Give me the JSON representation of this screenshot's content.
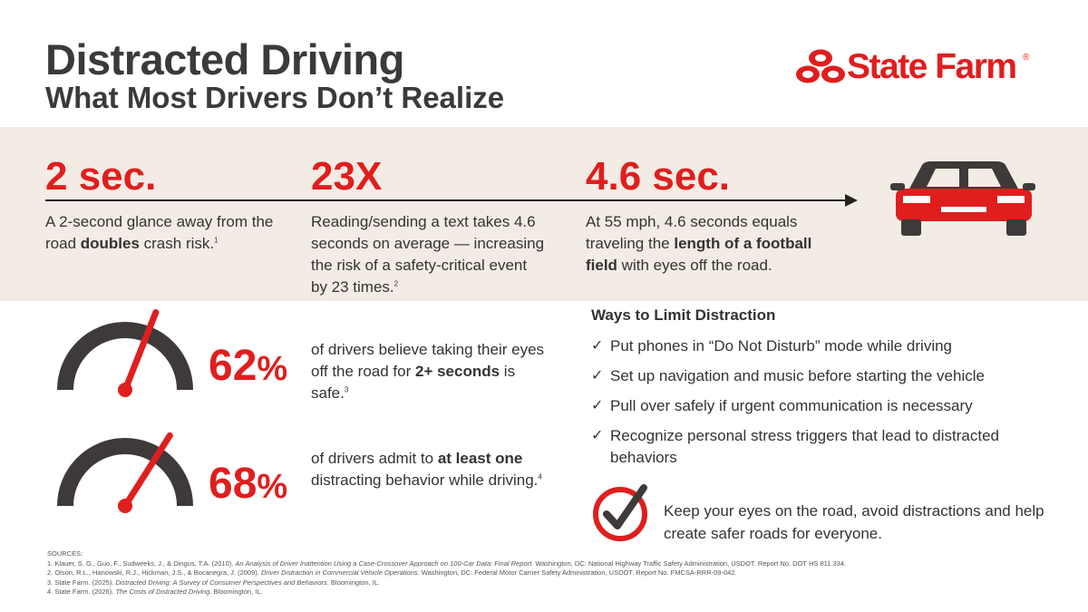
{
  "header": {
    "title": "Distracted Driving",
    "subtitle": "What Most Drivers Don’t Realize",
    "brand": "State Farm",
    "brand_mark": "®"
  },
  "stats": [
    {
      "big": "2 sec.",
      "pre": "A 2-second glance away from the road ",
      "bold": "doubles",
      "post": " crash risk.",
      "ref": "1"
    },
    {
      "big": "23X",
      "pre": "Reading/sending a text takes 4.6 seconds on average — increasing the risk of a safety-critical event by 23 times.",
      "ref": "2"
    },
    {
      "big": "4.6 sec.",
      "pre": "At 55 mph, 4.6 seconds equals traveling the ",
      "bold": "length of a football field",
      "post": " with eyes off the road."
    }
  ],
  "gauges": [
    {
      "value": "62",
      "unit": "%",
      "level": 0.62,
      "pre": "of drivers believe taking their eyes off the road for ",
      "bold": "2+ seconds",
      "post": " is safe.",
      "ref": "3"
    },
    {
      "value": "68",
      "unit": "%",
      "level": 0.68,
      "pre": "of drivers admit to ",
      "bold": "at least one",
      "post": " distracting behavior while driving.",
      "ref": "4"
    }
  ],
  "ways": {
    "title": "Ways to Limit Distraction",
    "items": [
      "Put phones in “Do Not Disturb” mode while driving",
      "Set up navigation and music before starting the vehicle",
      "Pull over safely if urgent communication is necessary",
      "Recognize personal stress triggers that lead to distracted behaviors"
    ]
  },
  "closing": "Keep your eyes on the road, avoid distractions and help create safer roads for everyone.",
  "sources": {
    "label": "SOURCES:",
    "items": [
      {
        "pre": "1. Klauer, S. G., Guo, F., Sudweeks, J., & Dingus, T.A. (2010). ",
        "ital": "An Analysis of Driver Inattention Using a Case-Crossover Approach on 100-Car Data: Final Report.",
        "post": " Washington, DC: National Highway Traffic Safety Administration, USDOT. Report No. DOT HS 811 334."
      },
      {
        "pre": "2. Olson, R.L., Hanowski, R.J., Hickman, J.S., & Bocanegra, J. (2009). ",
        "ital": "Driver Distraction in Commercial Vehicle Operations.",
        "post": " Washington, DC: Federal Motor Carrier Safety Administration, USDOT. Report No. FMCSA-RRR-09-042."
      },
      {
        "pre": "3. State Farm. (2025). ",
        "ital": "Distracted Driving: A Survey of Consumer Perspectives and Behaviors.",
        "post": " Bloomington, IL."
      },
      {
        "pre": "4. State Farm. (2026). ",
        "ital": "The Costs of Distracted Driving.",
        "post": " Bloomington, IL."
      }
    ]
  },
  "icons": {
    "logo": "state-farm-three-ovals-logo",
    "car": "car-icon",
    "gauge": "speedometer-gauge-icon",
    "check": "check-icon",
    "badge": "circle-check-icon"
  },
  "colors": {
    "accent": "#e01e1e",
    "text": "#3b3a3a",
    "band": "#f3ece4",
    "gauge": "#3d3a39"
  }
}
